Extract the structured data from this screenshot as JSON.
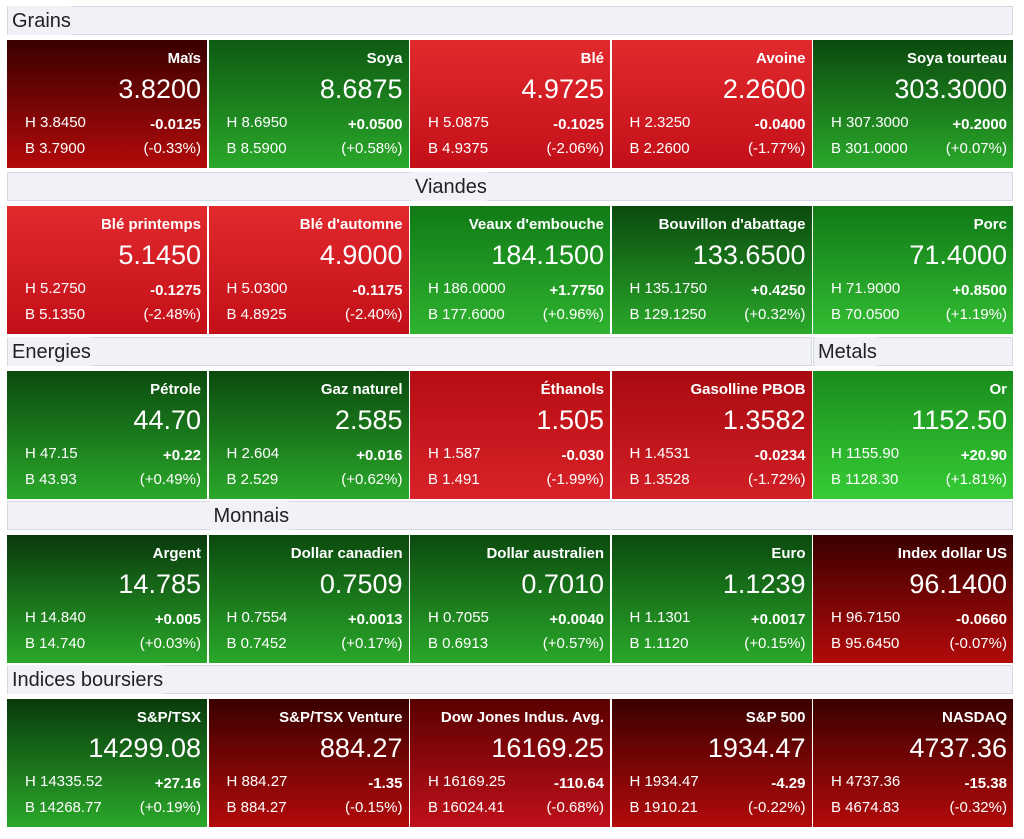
{
  "sections": [
    {
      "title": "Grains",
      "tiles": [
        {
          "name": "Maïs",
          "price": "3.8200",
          "high": "H 3.8450",
          "change": "-0.0125",
          "low": "B 3.7900",
          "percent": "(-0.33%)",
          "colors": [
            "#3a0000",
            "#b30a0a"
          ]
        },
        {
          "name": "Soya",
          "price": "8.6875",
          "high": "H 8.6950",
          "change": "+0.0500",
          "low": "B 8.5900",
          "percent": "(+0.58%)",
          "colors": [
            "#0e5a12",
            "#2aa82a"
          ]
        },
        {
          "name": "Blé",
          "price": "4.9725",
          "high": "H 5.0875",
          "change": "-0.1025",
          "low": "B 4.9375",
          "percent": "(-2.06%)",
          "colors": [
            "#e12a2e",
            "#c30f18"
          ]
        },
        {
          "name": "Avoine",
          "price": "2.2600",
          "high": "H 2.3250",
          "change": "-0.0400",
          "low": "B 2.2600",
          "percent": "(-1.77%)",
          "colors": [
            "#e12a2e",
            "#c30f18"
          ]
        },
        {
          "name": "Soya tourteau",
          "price": "303.3000",
          "high": "H 307.3000",
          "change": "+0.2000",
          "low": "B 301.0000",
          "percent": "(+0.07%)",
          "colors": [
            "#0b4a0e",
            "#2aa82a"
          ]
        }
      ]
    },
    {
      "title": "Viandes",
      "tiles": [
        {
          "name": "Blé printemps",
          "price": "5.1450",
          "high": "H 5.2750",
          "change": "-0.1275",
          "low": "B 5.1350",
          "percent": "(-2.48%)",
          "colors": [
            "#e12a2e",
            "#c30f18"
          ]
        },
        {
          "name": "Blé d'automne",
          "price": "4.9000",
          "high": "H 5.0300",
          "change": "-0.1175",
          "low": "B 4.8925",
          "percent": "(-2.40%)",
          "colors": [
            "#e12a2e",
            "#c30f18"
          ]
        },
        {
          "name": "Veaux d'embouche",
          "price": "184.1500",
          "high": "H 186.0000",
          "change": "+1.7750",
          "low": "B 177.6000",
          "percent": "(+0.96%)",
          "colors": [
            "#117a16",
            "#2fb32f"
          ]
        },
        {
          "name": "Bouvillon d'abattage",
          "price": "133.6500",
          "high": "H 135.1750",
          "change": "+0.4250",
          "low": "B 129.1250",
          "percent": "(+0.32%)",
          "colors": [
            "#0b4a0e",
            "#2aa82a"
          ]
        },
        {
          "name": "Porc",
          "price": "71.4000",
          "high": "H 71.9000",
          "change": "+0.8500",
          "low": "B 70.0500",
          "percent": "(+1.19%)",
          "colors": [
            "#117a16",
            "#33bd33"
          ]
        }
      ]
    },
    {
      "title": "Energies",
      "tiles": [
        {
          "name": "Pétrole",
          "price": "44.70",
          "high": "H 47.15",
          "change": "+0.22",
          "low": "B 43.93",
          "percent": "(+0.49%)",
          "colors": [
            "#0b4a0e",
            "#2aa82a"
          ]
        },
        {
          "name": "Gaz naturel",
          "price": "2.585",
          "high": "H 2.604",
          "change": "+0.016",
          "low": "B 2.529",
          "percent": "(+0.62%)",
          "colors": [
            "#0b4a0e",
            "#2aa82a"
          ]
        },
        {
          "name": "Éthanols",
          "price": "1.505",
          "high": "H 1.587",
          "change": "-0.030",
          "low": "B 1.491",
          "percent": "(-1.99%)",
          "colors": [
            "#b50d12",
            "#d9222a"
          ]
        },
        {
          "name": "Gasolline PBOB",
          "price": "1.3582",
          "high": "H 1.4531",
          "change": "-0.0234",
          "low": "B 1.3528",
          "percent": "(-1.72%)",
          "colors": [
            "#a80a10",
            "#d21f26"
          ]
        }
      ]
    },
    {
      "title": "Metals",
      "tiles": [
        {
          "name": "Or",
          "price": "1152.50",
          "high": "H 1155.90",
          "change": "+20.90",
          "low": "B 1128.30",
          "percent": "(+1.81%)",
          "colors": [
            "#1a8c1c",
            "#36cc36"
          ]
        }
      ]
    },
    {
      "title": "Monnais",
      "tiles": [
        {
          "name": "Argent",
          "price": "14.785",
          "high": "H 14.840",
          "change": "+0.005",
          "low": "B 14.740",
          "percent": "(+0.03%)",
          "colors": [
            "#093a0c",
            "#2aa82a"
          ]
        },
        {
          "name": "Dollar canadien",
          "price": "0.7509",
          "high": "H 0.7554",
          "change": "+0.0013",
          "low": "B 0.7452",
          "percent": "(+0.17%)",
          "colors": [
            "#0b4a0e",
            "#2aa82a"
          ]
        },
        {
          "name": "Dollar australien",
          "price": "0.7010",
          "high": "H 0.7055",
          "change": "+0.0040",
          "low": "B 0.6913",
          "percent": "(+0.57%)",
          "colors": [
            "#0b4a0e",
            "#2aa82a"
          ]
        },
        {
          "name": "Euro",
          "price": "1.1239",
          "high": "H 1.1301",
          "change": "+0.0017",
          "low": "B 1.1120",
          "percent": "(+0.15%)",
          "colors": [
            "#0b4a0e",
            "#2aa82a"
          ]
        },
        {
          "name": "Index dollar US",
          "price": "96.1400",
          "high": "H 96.7150",
          "change": "-0.0660",
          "low": "B 95.6450",
          "percent": "(-0.07%)",
          "colors": [
            "#3a0000",
            "#b30a0a"
          ]
        }
      ]
    },
    {
      "title": "Indices boursiers",
      "tiles": [
        {
          "name": "S&P/TSX",
          "price": "14299.08",
          "high": "H 14335.52",
          "change": "+27.16",
          "low": "B 14268.77",
          "percent": "(+0.19%)",
          "colors": [
            "#093a0c",
            "#2aa82a"
          ]
        },
        {
          "name": "S&P/TSX Venture",
          "price": "884.27",
          "high": "H 884.27",
          "change": "-1.35",
          "low": "B 884.27",
          "percent": "(-0.15%)",
          "colors": [
            "#3a0000",
            "#b30a0a"
          ]
        },
        {
          "name": "Dow Jones Indus. Avg.",
          "price": "16169.25",
          "high": "H 16169.25",
          "change": "-110.64",
          "low": "B 16024.41",
          "percent": "(-0.68%)",
          "colors": [
            "#5a0000",
            "#c0101a"
          ]
        },
        {
          "name": "S&P 500",
          "price": "1934.47",
          "high": "H 1934.47",
          "change": "-4.29",
          "low": "B 1910.21",
          "percent": "(-0.22%)",
          "colors": [
            "#3a0000",
            "#b30a0a"
          ]
        },
        {
          "name": "NASDAQ",
          "price": "4737.36",
          "high": "H 4737.36",
          "change": "-15.38",
          "low": "B 4674.83",
          "percent": "(-0.32%)",
          "colors": [
            "#3a0000",
            "#b30a0a"
          ]
        }
      ]
    }
  ]
}
